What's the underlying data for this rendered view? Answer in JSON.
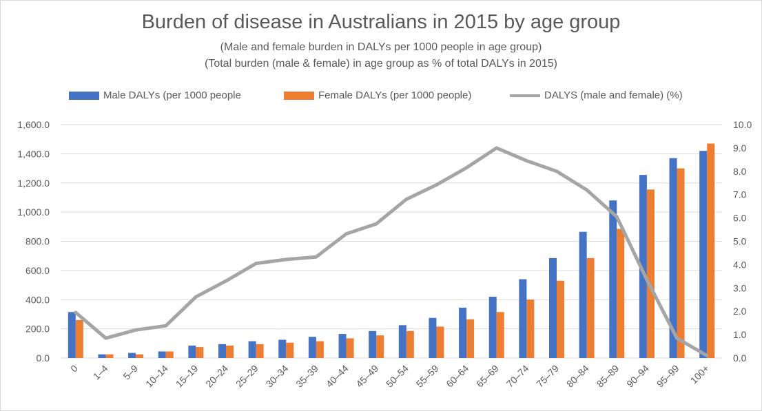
{
  "chart_data": {
    "type": "bar",
    "title": "Burden of disease in Australians in 2015 by age group",
    "subtitle_lines": [
      "(Male and female burden in DALYs per 1000 people in age group)",
      "(Total burden (male & female) in age group as % of total DALYs in 2015)"
    ],
    "categories": [
      "0",
      "1–4",
      "5–9",
      "10–14",
      "15–19",
      "20–24",
      "25–29",
      "30–34",
      "35–39",
      "40–44",
      "45–49",
      "50–54",
      "55–59",
      "60–64",
      "65–69",
      "70–74",
      "75–79",
      "80–84",
      "85–89",
      "90–94",
      "95–99",
      "100+"
    ],
    "series": [
      {
        "name": "Male DALYs (per 1000 people",
        "type": "bar",
        "axis": "left",
        "color": "#4472c4",
        "values": [
          315,
          25,
          35,
          45,
          85,
          95,
          115,
          125,
          145,
          165,
          185,
          225,
          275,
          345,
          420,
          540,
          685,
          865,
          1080,
          1255,
          1370,
          1420
        ]
      },
      {
        "name": "Female DALYs (per 1000 people)",
        "type": "bar",
        "axis": "left",
        "color": "#ed7d31",
        "values": [
          260,
          25,
          25,
          45,
          75,
          85,
          95,
          105,
          115,
          135,
          155,
          185,
          215,
          265,
          315,
          400,
          530,
          685,
          885,
          1155,
          1300,
          1470
        ]
      },
      {
        "name": "DALYS (male and female) (%)",
        "type": "line",
        "axis": "right",
        "color": "#a5a5a5",
        "values": [
          1.95,
          0.85,
          1.2,
          1.38,
          2.62,
          3.3,
          4.05,
          4.22,
          4.33,
          5.32,
          5.75,
          6.8,
          7.42,
          8.15,
          9.0,
          8.45,
          8.0,
          7.2,
          6.05,
          3.35,
          0.85,
          0.1
        ]
      }
    ],
    "ylim": [
      0,
      1600
    ],
    "y_ticks": [
      "0.0",
      "200.0",
      "400.0",
      "600.0",
      "800.0",
      "1,000.0",
      "1,200.0",
      "1,400.0",
      "1,600.0"
    ],
    "y2lim": [
      0,
      10
    ],
    "y2_ticks": [
      "0.0",
      "1.0",
      "2.0",
      "3.0",
      "4.0",
      "5.0",
      "6.0",
      "7.0",
      "8.0",
      "9.0",
      "10.0"
    ],
    "grid": true,
    "legend_position": "top"
  }
}
